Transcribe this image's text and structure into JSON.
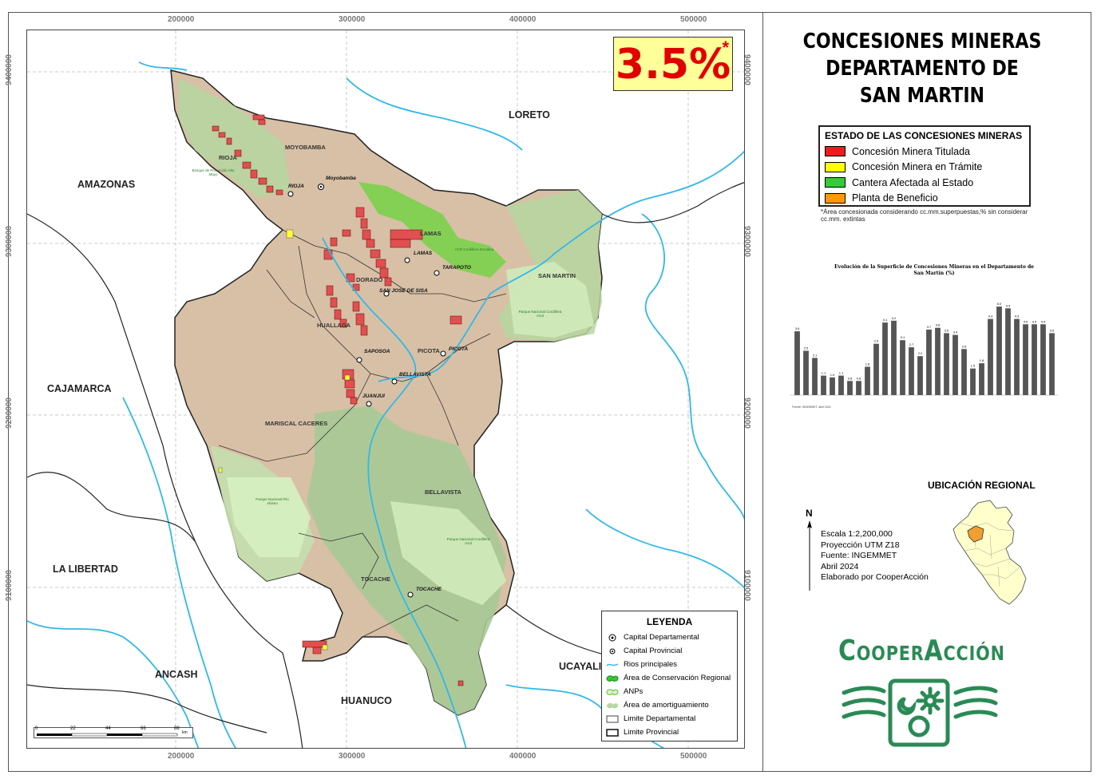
{
  "title": [
    "CONCESIONES MINERAS",
    "DEPARTAMENTO DE",
    "SAN MARTIN"
  ],
  "percentage": {
    "value": "3.5%",
    "mark": "*"
  },
  "grid": {
    "x_labels": [
      "200000",
      "300000",
      "400000",
      "500000"
    ],
    "y_labels": [
      "9400000",
      "9300000",
      "9200000",
      "9100000"
    ]
  },
  "departments": [
    "AMAZONAS",
    "LORETO",
    "CAJAMARCA",
    "LA LIBERTAD",
    "ANCASH",
    "HUANUCO",
    "UCAYALI",
    "SAN MARTIN"
  ],
  "provinces": [
    "RIOJA",
    "MOYOBAMBA",
    "LAMAS",
    "DORADO",
    "HUALLAGA",
    "PICOTA",
    "MARISCAL CACERES",
    "BELLAVISTA",
    "TOCACHE"
  ],
  "cities": [
    "Moyobamba",
    "RIOJA",
    "LAMAS",
    "TARAPOTO",
    "SAN JOSE DE SISA",
    "SAPOSOA",
    "PICOTA",
    "BELLAVISTA",
    "JUANJUI",
    "TOCACHE"
  ],
  "protected_areas": [
    "Bosque de Protección Alto Mayo",
    "ACR Cordillera Escalera",
    "Parque Nacional Cordillera Azul",
    "Parque Nacional Río Abiseo",
    "Parque Nacional Cordillera Azul"
  ],
  "status_legend": {
    "title": "ESTADO DE LAS CONCESIONES MINERAS",
    "items": [
      {
        "label": "Concesión Minera Titulada",
        "color": "#ee1c1c"
      },
      {
        "label": "Concesión Minera en Trámite",
        "color": "#ffff00"
      },
      {
        "label": "Cantera Afectada al Estado",
        "color": "#33cc33"
      },
      {
        "label": "Planta de Beneficio",
        "color": "#ff9900"
      }
    ]
  },
  "note": "*Área concesionada considerando cc.mm.superpuestas,% sin considerar cc.mm. extintas",
  "chart": {
    "title": "Evolución de la Superficie de Concesiones Mineras en el Departamento de San Martín (%)",
    "source": "Fuente: INGEMMET, abril 2024",
    "chart_data": {
      "type": "bar",
      "values": [
        3.6,
        2.5,
        2.1,
        1.1,
        1.0,
        1.1,
        0.8,
        0.8,
        1.6,
        2.9,
        4.1,
        4.2,
        3.1,
        2.7,
        2.2,
        3.7,
        3.8,
        3.5,
        3.4,
        2.6,
        1.5,
        1.8,
        4.3,
        5.0,
        4.9,
        4.3,
        4.0,
        4.0,
        4.0,
        3.5
      ],
      "value_labels": [
        "3.6",
        "2.5",
        "2.1",
        "1.1",
        "1.0",
        "1.1",
        "0.8",
        "0.8",
        "1.6",
        "2.9",
        "4.1",
        "4.2",
        "3.1",
        "2.7",
        "2.2",
        "3.7",
        "3.8",
        "3.5",
        "3.4",
        "2.6",
        "1.5",
        "1.8",
        "4.3",
        "5.0",
        "4.9",
        "4.3",
        "4.0",
        "4.0",
        "4.0",
        "3.5"
      ],
      "ylim": [
        0,
        5.5
      ],
      "bar_color": "#555555"
    }
  },
  "regional": {
    "title": "UBICACIÓN REGIONAL"
  },
  "credits": {
    "north": "N",
    "lines": [
      "Escala 1:2,200,000",
      "Proyección UTM Z18",
      "Fuente: INGEMMET",
      "Abril 2024",
      "Elaborado por CooperAcción"
    ]
  },
  "brand": "CooperAcción",
  "legend": {
    "title": "LEYENDA",
    "items": [
      {
        "label": "Capital Departamental",
        "icon": "capital-dept-icon"
      },
      {
        "label": "Capital Provincial",
        "icon": "capital-prov-icon"
      },
      {
        "label": "Rios principales",
        "icon": "river-icon"
      },
      {
        "label": "Área de Conservación Regional",
        "icon": "acr-icon"
      },
      {
        "label": "ANPs",
        "icon": "anp-icon"
      },
      {
        "label": "Área de amortiguamiento",
        "icon": "buffer-icon"
      },
      {
        "label": "Limite Departamental",
        "icon": "dept-limit-icon"
      },
      {
        "label": "Limite Provincial",
        "icon": "prov-limit-icon"
      }
    ]
  },
  "scalebar": {
    "labels": [
      "0",
      "22",
      "44",
      "66",
      "88"
    ],
    "unit": "km"
  },
  "colors": {
    "terrain": "#d7c0a6",
    "buffer": "#b6d6a0",
    "anp": "#cfe9b8",
    "acr": "#7fd14f",
    "river": "#31b8e8",
    "concession": "#e05050"
  }
}
